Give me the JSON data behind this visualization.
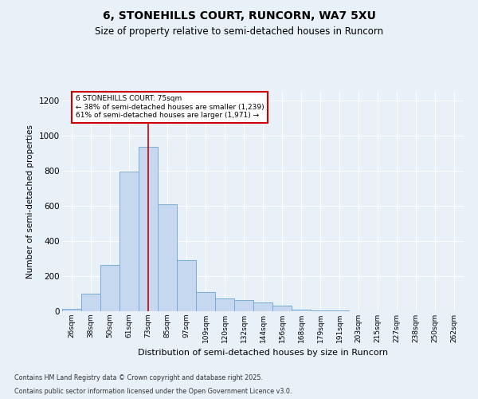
{
  "title_line1": "6, STONEHILLS COURT, RUNCORN, WA7 5XU",
  "title_line2": "Size of property relative to semi-detached houses in Runcorn",
  "xlabel": "Distribution of semi-detached houses by size in Runcorn",
  "ylabel": "Number of semi-detached properties",
  "categories": [
    "26sqm",
    "38sqm",
    "50sqm",
    "61sqm",
    "73sqm",
    "85sqm",
    "97sqm",
    "109sqm",
    "120sqm",
    "132sqm",
    "144sqm",
    "156sqm",
    "168sqm",
    "179sqm",
    "191sqm",
    "203sqm",
    "215sqm",
    "227sqm",
    "238sqm",
    "250sqm",
    "262sqm"
  ],
  "values": [
    15,
    100,
    265,
    795,
    935,
    610,
    290,
    110,
    75,
    65,
    50,
    30,
    10,
    5,
    3,
    2,
    1,
    1,
    0,
    0,
    1
  ],
  "bar_color": "#c5d8f0",
  "bar_edge_color": "#7aadd4",
  "property_bin_index": 4,
  "red_line_color": "#cc0000",
  "annotation_text": "6 STONEHILLS COURT: 75sqm\n← 38% of semi-detached houses are smaller (1,239)\n61% of semi-detached houses are larger (1,971) →",
  "annotation_box_color": "#ffffff",
  "annotation_box_edge_color": "#cc0000",
  "ylim": [
    0,
    1250
  ],
  "yticks": [
    0,
    200,
    400,
    600,
    800,
    1000,
    1200
  ],
  "background_color": "#e8f0f8",
  "grid_color": "#ffffff",
  "footer_line1": "Contains HM Land Registry data © Crown copyright and database right 2025.",
  "footer_line2": "Contains public sector information licensed under the Open Government Licence v3.0."
}
